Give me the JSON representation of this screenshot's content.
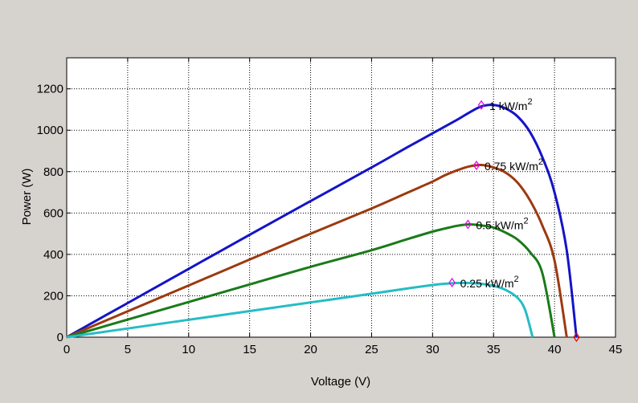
{
  "chart_data": {
    "type": "line",
    "xlabel": "Voltage (V)",
    "ylabel": "Power (W)",
    "xlim": [
      0,
      45
    ],
    "ylim": [
      0,
      1350
    ],
    "xticks": [
      0,
      5,
      10,
      15,
      20,
      25,
      30,
      35,
      40,
      45
    ],
    "yticks": [
      0,
      200,
      400,
      600,
      800,
      1000,
      1200
    ],
    "grid": true,
    "series": [
      {
        "name": "1 kW/m²",
        "label_base": "1 kW/m",
        "label_sup": "2",
        "color": "#1414c8",
        "points": [
          [
            0,
            0
          ],
          [
            5,
            165
          ],
          [
            10,
            330
          ],
          [
            15,
            495
          ],
          [
            20,
            658
          ],
          [
            25,
            820
          ],
          [
            28,
            920
          ],
          [
            30,
            985
          ],
          [
            32,
            1050
          ],
          [
            33,
            1085
          ],
          [
            34,
            1115
          ],
          [
            35,
            1122
          ],
          [
            36,
            1105
          ],
          [
            37,
            1065
          ],
          [
            38,
            990
          ],
          [
            39,
            870
          ],
          [
            40,
            700
          ],
          [
            41,
            420
          ],
          [
            41.8,
            0
          ]
        ],
        "mpp": [
          34.0,
          1122
        ]
      },
      {
        "name": "0.75 kW/m²",
        "label_base": "0.75 kW/m",
        "label_sup": "2",
        "color": "#9c3a10",
        "points": [
          [
            0,
            0
          ],
          [
            5,
            125
          ],
          [
            10,
            250
          ],
          [
            15,
            375
          ],
          [
            20,
            500
          ],
          [
            25,
            622
          ],
          [
            28,
            700
          ],
          [
            30,
            752
          ],
          [
            31,
            782
          ],
          [
            32,
            806
          ],
          [
            33,
            825
          ],
          [
            34,
            832
          ],
          [
            35,
            820
          ],
          [
            36,
            795
          ],
          [
            37,
            745
          ],
          [
            38,
            660
          ],
          [
            39,
            540
          ],
          [
            40,
            370
          ],
          [
            41,
            0
          ]
        ],
        "mpp": [
          33.6,
          830
        ]
      },
      {
        "name": "0.5 kW/m²",
        "label_base": "0.5 kW/m",
        "label_sup": "2",
        "color": "#1a7a1a",
        "points": [
          [
            0,
            0
          ],
          [
            5,
            85
          ],
          [
            10,
            170
          ],
          [
            15,
            255
          ],
          [
            20,
            340
          ],
          [
            25,
            420
          ],
          [
            28,
            475
          ],
          [
            30,
            510
          ],
          [
            31,
            525
          ],
          [
            32,
            538
          ],
          [
            33,
            545
          ],
          [
            34,
            540
          ],
          [
            35,
            530
          ],
          [
            36,
            505
          ],
          [
            37,
            470
          ],
          [
            38,
            410
          ],
          [
            39,
            310
          ],
          [
            40,
            0
          ]
        ],
        "mpp": [
          32.9,
          545
        ]
      },
      {
        "name": "0.25 kW/m²",
        "label_base": "0.25 kW/m",
        "label_sup": "2",
        "color": "#26bcc4",
        "points": [
          [
            0,
            0
          ],
          [
            5,
            42
          ],
          [
            10,
            84
          ],
          [
            15,
            126
          ],
          [
            20,
            168
          ],
          [
            25,
            210
          ],
          [
            28,
            236
          ],
          [
            30,
            252
          ],
          [
            31,
            258
          ],
          [
            32,
            262
          ],
          [
            33,
            262
          ],
          [
            34,
            258
          ],
          [
            35,
            248
          ],
          [
            36,
            228
          ],
          [
            37,
            188
          ],
          [
            37.6,
            130
          ],
          [
            38.2,
            0
          ]
        ],
        "mpp": [
          31.6,
          264
        ]
      }
    ],
    "end_marker": [
      41.8,
      0
    ]
  }
}
